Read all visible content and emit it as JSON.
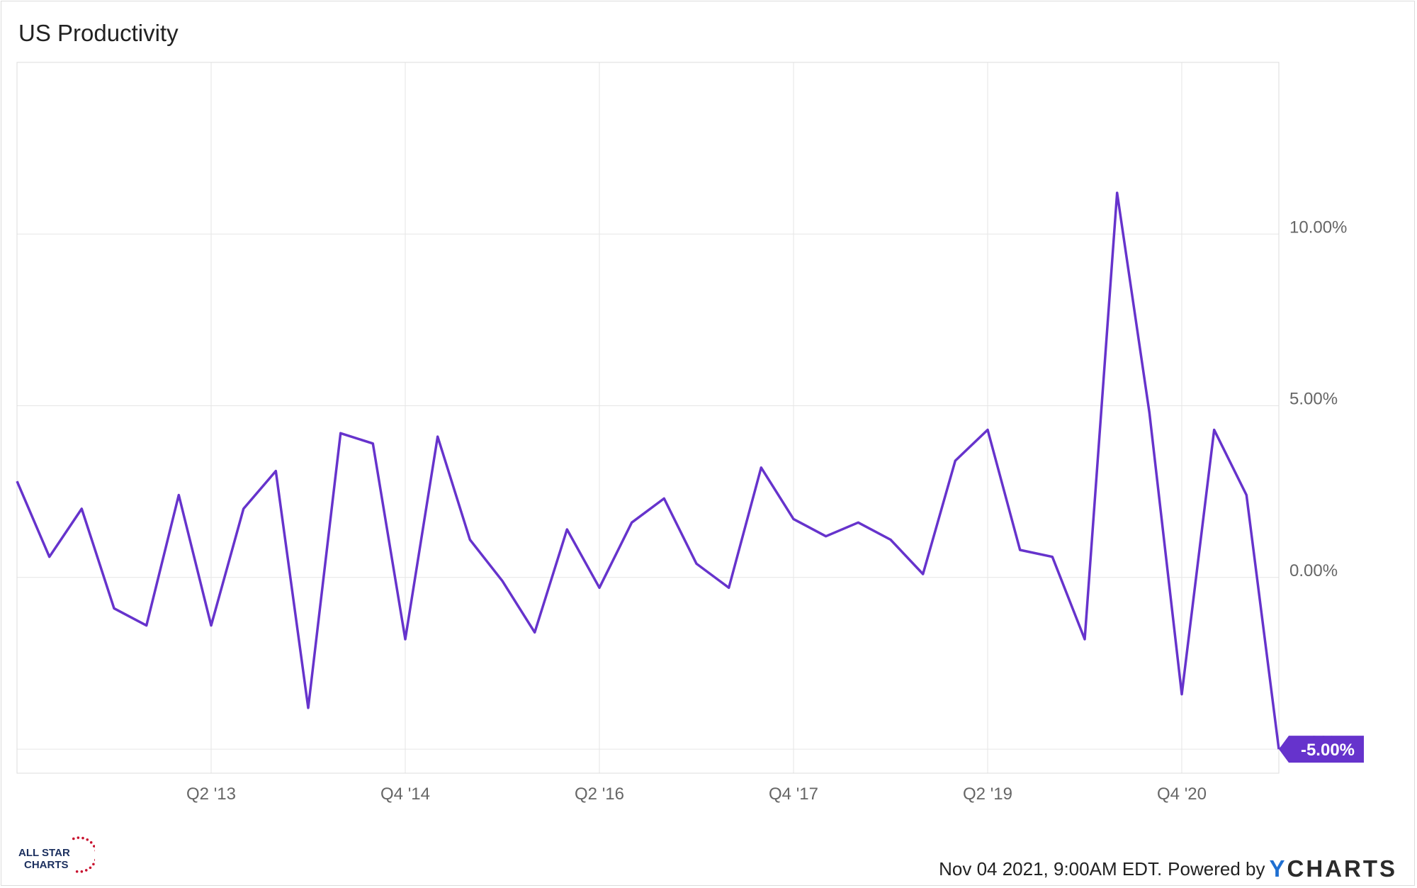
{
  "title": "US Productivity",
  "footer": {
    "timestamp": "Nov 04 2021, 9:00AM EDT.",
    "powered_by": "Powered by",
    "brand_y": "Y",
    "brand_rest": "CHARTS"
  },
  "logo": {
    "line1": "ALL STAR",
    "line2": "CHARTS",
    "star_color": "#c8102e",
    "text_color": "#1b2f5e"
  },
  "colors": {
    "line": "#6633cc",
    "grid": "#e6e6e6",
    "axis_text": "#666666"
  },
  "chart_data": {
    "type": "line",
    "title": "US Productivity",
    "series": [
      {
        "values": [
          2.8,
          0.6,
          2.0,
          -0.9,
          -1.4,
          2.4,
          -1.4,
          2.0,
          3.1,
          -3.8,
          4.2,
          3.9,
          -1.8,
          4.1,
          1.1,
          -0.1,
          -1.6,
          1.4,
          -0.3,
          1.6,
          2.3,
          0.4,
          -0.3,
          3.2,
          1.7,
          1.2,
          1.6,
          1.1,
          0.1,
          3.4,
          4.3,
          0.8,
          0.6,
          -1.8,
          11.2,
          4.8,
          -3.4,
          4.3,
          2.4,
          -5.0
        ]
      }
    ],
    "x_ticks": [
      "Q2 '13",
      "Q4 '14",
      "Q2 '16",
      "Q4 '17",
      "Q2 '19",
      "Q4 '20"
    ],
    "x_tick_positions": [
      6,
      12,
      18,
      24,
      30,
      36
    ],
    "y_ticks": [
      "10.00%",
      "5.00%",
      "0.00%",
      "-5.00%"
    ],
    "y_tick_values": [
      10,
      5,
      0,
      -5
    ],
    "ylim": [
      -5.7,
      15.0
    ],
    "last_value_label": "-5.00%",
    "grid": true,
    "y_axis_side": "right"
  }
}
